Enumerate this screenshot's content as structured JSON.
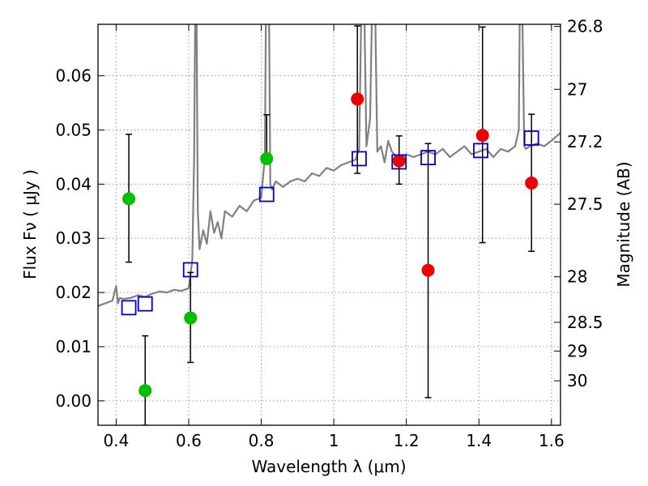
{
  "chart_data": {
    "type": "scatter",
    "title": "",
    "xlabel": "Wavelength  λ (μm)",
    "ylabel": "Flux  Fν  ( μJy )",
    "y2label": "Magnitude (AB)",
    "xlim": [
      0.35,
      1.625
    ],
    "ylim": [
      -0.0045,
      0.0695
    ],
    "grid": true,
    "x_ticks": [
      {
        "value": 0.4,
        "label": "0.4"
      },
      {
        "value": 0.6,
        "label": "0.6"
      },
      {
        "value": 0.8,
        "label": "0.8"
      },
      {
        "value": 1.0,
        "label": "1"
      },
      {
        "value": 1.2,
        "label": "1.2"
      },
      {
        "value": 1.4,
        "label": "1.4"
      },
      {
        "value": 1.6,
        "label": "1.6"
      }
    ],
    "y_ticks": [
      {
        "value": 0.0,
        "label": "0.00"
      },
      {
        "value": 0.01,
        "label": "0.01"
      },
      {
        "value": 0.02,
        "label": "0.02"
      },
      {
        "value": 0.03,
        "label": "0.03"
      },
      {
        "value": 0.04,
        "label": "0.04"
      },
      {
        "value": 0.05,
        "label": "0.05"
      },
      {
        "value": 0.06,
        "label": "0.06"
      }
    ],
    "y2_ticks": [
      {
        "flux": 0.0691,
        "label": "26.8"
      },
      {
        "flux": 0.0575,
        "label": "27"
      },
      {
        "flux": 0.0478,
        "label": "27.2"
      },
      {
        "flux": 0.0363,
        "label": "27.5"
      },
      {
        "flux": 0.0229,
        "label": "28"
      },
      {
        "flux": 0.0145,
        "label": "28.5"
      },
      {
        "flux": 0.0092,
        "label": "29"
      },
      {
        "flux": 0.0037,
        "label": "30"
      }
    ],
    "colors": {
      "model": "#808080",
      "green": "#00c000",
      "red": "#ee0000",
      "square": "#0000cc",
      "errorbar": "#000000",
      "grid": "#999999"
    },
    "series": [
      {
        "name": "model-sed",
        "kind": "line",
        "x": [
          0.35,
          0.37,
          0.39,
          0.4,
          0.405,
          0.41,
          0.42,
          0.44,
          0.46,
          0.48,
          0.5,
          0.52,
          0.54,
          0.56,
          0.58,
          0.6,
          0.61,
          0.615,
          0.62,
          0.625,
          0.63,
          0.64,
          0.65,
          0.66,
          0.67,
          0.68,
          0.69,
          0.7,
          0.72,
          0.74,
          0.76,
          0.78,
          0.8,
          0.81,
          0.815,
          0.82,
          0.825,
          0.83,
          0.84,
          0.86,
          0.88,
          0.9,
          0.92,
          0.94,
          0.96,
          0.98,
          1.0,
          1.02,
          1.04,
          1.06,
          1.07,
          1.08,
          1.09,
          1.1,
          1.11,
          1.12,
          1.13,
          1.14,
          1.15,
          1.16,
          1.18,
          1.2,
          1.22,
          1.24,
          1.26,
          1.28,
          1.3,
          1.32,
          1.34,
          1.36,
          1.38,
          1.4,
          1.42,
          1.44,
          1.46,
          1.48,
          1.5,
          1.51,
          1.515,
          1.52,
          1.525,
          1.53,
          1.54,
          1.56,
          1.58,
          1.6,
          1.625
        ],
        "y": [
          0.0175,
          0.018,
          0.0185,
          0.0212,
          0.018,
          0.019,
          0.0188,
          0.019,
          0.0195,
          0.0192,
          0.0198,
          0.0202,
          0.02,
          0.0205,
          0.0203,
          0.0208,
          0.026,
          0.045,
          0.09,
          0.035,
          0.028,
          0.0315,
          0.029,
          0.035,
          0.031,
          0.033,
          0.03,
          0.035,
          0.034,
          0.036,
          0.035,
          0.037,
          0.0375,
          0.045,
          0.09,
          0.085,
          0.04,
          0.039,
          0.0405,
          0.0395,
          0.0405,
          0.041,
          0.0405,
          0.042,
          0.0415,
          0.043,
          0.0425,
          0.0435,
          0.044,
          0.0445,
          0.0465,
          0.09,
          0.047,
          0.052,
          0.09,
          0.046,
          0.047,
          0.044,
          0.048,
          0.046,
          0.0445,
          0.0455,
          0.045,
          0.0455,
          0.046,
          0.0455,
          0.0465,
          0.045,
          0.046,
          0.047,
          0.0455,
          0.046,
          0.0465,
          0.045,
          0.0465,
          0.046,
          0.047,
          0.05,
          0.09,
          0.07,
          0.047,
          0.0465,
          0.047,
          0.0475,
          0.047,
          0.048,
          0.0495
        ]
      },
      {
        "name": "green-photometry",
        "kind": "scatter",
        "points": [
          {
            "x": 0.435,
            "y": 0.0373,
            "err_low": 0.0117,
            "err_high": 0.0119
          },
          {
            "x": 0.48,
            "y": 0.0019,
            "err_low": 0.0064,
            "err_high": 0.0101
          },
          {
            "x": 0.605,
            "y": 0.0153,
            "err_low": 0.0082,
            "err_high": 0.0084
          },
          {
            "x": 0.815,
            "y": 0.0447,
            "err_low": 0.0,
            "err_high": 0.0081
          }
        ]
      },
      {
        "name": "red-photometry",
        "kind": "scatter",
        "points": [
          {
            "x": 1.065,
            "y": 0.0557,
            "err_low": 0.0137,
            "err_high": 0.0135
          },
          {
            "x": 1.18,
            "y": 0.0443,
            "err_low": 0.0043,
            "err_high": 0.0046
          },
          {
            "x": 1.26,
            "y": 0.0241,
            "err_low": 0.0235,
            "err_high": 0.0234
          },
          {
            "x": 1.41,
            "y": 0.049,
            "err_low": 0.0198,
            "err_high": 0.02
          },
          {
            "x": 1.545,
            "y": 0.0402,
            "err_low": 0.0126,
            "err_high": 0.0127
          }
        ]
      },
      {
        "name": "model-bandpass",
        "kind": "scatter",
        "points": [
          {
            "x": 0.435,
            "y": 0.0172
          },
          {
            "x": 0.48,
            "y": 0.0179
          },
          {
            "x": 0.605,
            "y": 0.0242
          },
          {
            "x": 0.815,
            "y": 0.0381
          },
          {
            "x": 1.07,
            "y": 0.0447
          },
          {
            "x": 1.18,
            "y": 0.0441
          },
          {
            "x": 1.26,
            "y": 0.0449
          },
          {
            "x": 1.405,
            "y": 0.0462
          },
          {
            "x": 1.545,
            "y": 0.0485
          }
        ]
      }
    ]
  }
}
